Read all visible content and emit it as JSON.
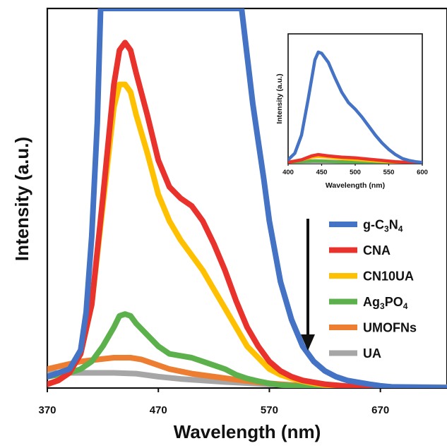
{
  "chart_data": [
    {
      "type": "line",
      "title": "",
      "xlabel": "Wavelength (nm)",
      "ylabel": "Intensity (a.u.)",
      "xlim": [
        370,
        730
      ],
      "ylim": [
        0,
        100
      ],
      "xticks": [
        370,
        470,
        570,
        670
      ],
      "xtick_labels": [
        "370",
        "470",
        "570",
        "670"
      ],
      "grid": false,
      "legend_position": "right",
      "annotation": "down-arrow",
      "series": [
        {
          "name": "g-C3N4",
          "color": "#4472C4",
          "x": [
            370,
            390,
            400,
            405,
            410,
            415,
            418,
            545,
            555,
            560,
            565,
            570,
            580,
            590,
            600,
            610,
            620,
            630,
            640,
            650,
            660,
            670,
            680,
            700,
            730
          ],
          "y": [
            3,
            5,
            10,
            20,
            40,
            70,
            100,
            100,
            75,
            65,
            55,
            44,
            28,
            18,
            11,
            7,
            4.5,
            3,
            2,
            1.5,
            1,
            0.6,
            0.3,
            0.2,
            0.1
          ]
        },
        {
          "name": "CNA",
          "color": "#E8322B",
          "x": [
            370,
            380,
            390,
            400,
            410,
            420,
            430,
            435,
            440,
            445,
            450,
            460,
            470,
            480,
            490,
            500,
            505,
            510,
            520,
            530,
            540,
            550,
            560,
            570,
            580,
            590,
            600,
            610,
            620,
            640,
            660,
            680,
            700,
            730
          ],
          "y": [
            1,
            2,
            4,
            9,
            22,
            50,
            80,
            89,
            91,
            89,
            83,
            72,
            60,
            53,
            50,
            48,
            46,
            44,
            38,
            31,
            23,
            16,
            11,
            7,
            4.5,
            3,
            2,
            1.5,
            1,
            0.5,
            0.3,
            0.2,
            0.1,
            0.1
          ]
        },
        {
          "name": "CN10UA",
          "color": "#FFC000",
          "x": [
            370,
            380,
            390,
            400,
            410,
            420,
            430,
            435,
            440,
            445,
            450,
            460,
            470,
            480,
            490,
            500,
            510,
            520,
            530,
            540,
            550,
            560,
            570,
            580,
            590,
            600,
            610,
            620,
            640,
            660,
            680,
            700,
            730
          ],
          "y": [
            1,
            2,
            4,
            9,
            22,
            48,
            74,
            80,
            80,
            78,
            72,
            62,
            51,
            44,
            39,
            35,
            31,
            26,
            21,
            16,
            11,
            8,
            5,
            3.5,
            2.5,
            1.8,
            1.2,
            0.8,
            0.4,
            0.2,
            0.1,
            0.1,
            0.1
          ]
        },
        {
          "name": "Ag3PO4",
          "color": "#5DB14D",
          "x": [
            370,
            380,
            390,
            400,
            410,
            420,
            430,
            435,
            440,
            445,
            450,
            460,
            470,
            480,
            490,
            500,
            510,
            520,
            530,
            540,
            550,
            560,
            570,
            580,
            600,
            620,
            650,
            680,
            730
          ],
          "y": [
            3,
            3.5,
            4,
            5,
            7,
            11,
            16,
            19,
            19.5,
            19,
            17,
            14,
            11,
            9,
            8.5,
            8,
            7,
            6,
            5,
            3.5,
            2.5,
            1.8,
            1.2,
            0.8,
            0.4,
            0.2,
            0.1,
            0.1,
            0.1
          ]
        },
        {
          "name": "UMOFNs",
          "color": "#ED7D31",
          "x": [
            370,
            385,
            400,
            415,
            430,
            445,
            455,
            465,
            480,
            500,
            520,
            540,
            560,
            580,
            600,
            620,
            640,
            660,
            680,
            700,
            730
          ],
          "y": [
            5,
            6,
            7,
            7.5,
            8,
            8,
            7.5,
            6.5,
            5,
            3.8,
            3,
            2.2,
            1.5,
            1,
            0.6,
            0.4,
            0.3,
            0.2,
            0.1,
            0.1,
            0.1
          ]
        },
        {
          "name": "UA",
          "color": "#A6A6A6",
          "x": [
            370,
            390,
            410,
            430,
            450,
            470,
            490,
            510,
            530,
            550,
            570,
            590,
            610,
            630,
            650,
            680,
            730
          ],
          "y": [
            4,
            4,
            4,
            4,
            3.8,
            3,
            2.4,
            2,
            1.6,
            1.3,
            1,
            0.8,
            0.6,
            0.5,
            0.4,
            0.3,
            0.2
          ]
        }
      ],
      "legend": [
        {
          "label": "g-C",
          "sub1": "3",
          "mid": "N",
          "sub2": "4",
          "color": "#4472C4"
        },
        {
          "label": "CNA",
          "color": "#E8322B"
        },
        {
          "label": "CN10UA",
          "color": "#FFC000"
        },
        {
          "label": "Ag",
          "sub1": "3",
          "mid": "PO",
          "sub2": "4",
          "color": "#5DB14D"
        },
        {
          "label": "UMOFNs",
          "color": "#ED7D31"
        },
        {
          "label": "UA",
          "color": "#A6A6A6"
        }
      ]
    },
    {
      "type": "line",
      "title": "",
      "xlabel": "Wavelength (nm)",
      "ylabel": "Intensity (a.u.)",
      "xlim": [
        400,
        600
      ],
      "ylim": [
        0,
        100
      ],
      "xticks": [
        400,
        450,
        500,
        550,
        600
      ],
      "xtick_labels": [
        "400",
        "450",
        "500",
        "550",
        "600"
      ],
      "series": [
        {
          "name": "g-C3N4",
          "color": "#4472C4",
          "x": [
            400,
            410,
            420,
            430,
            440,
            445,
            450,
            460,
            470,
            480,
            490,
            500,
            510,
            520,
            530,
            540,
            550,
            560,
            570,
            580,
            590,
            600
          ],
          "y": [
            3,
            8,
            22,
            50,
            80,
            86,
            85,
            78,
            66,
            55,
            47,
            42,
            36,
            29,
            22,
            16,
            11,
            7,
            4,
            2.5,
            1.5,
            1
          ]
        },
        {
          "name": "CNA",
          "color": "#E8322B",
          "x": [
            400,
            420,
            435,
            445,
            460,
            480,
            500,
            520,
            540,
            560,
            580,
            600
          ],
          "y": [
            1,
            3,
            6,
            7,
            6,
            5,
            4.5,
            3.5,
            2.5,
            1.5,
            1,
            0.5
          ]
        },
        {
          "name": "CN10UA",
          "color": "#FFC000",
          "x": [
            400,
            420,
            435,
            445,
            460,
            480,
            500,
            520,
            540,
            560,
            580,
            600
          ],
          "y": [
            1,
            3,
            5,
            5.5,
            5,
            4,
            3.2,
            2.5,
            1.8,
            1.2,
            0.8,
            0.5
          ]
        },
        {
          "name": "Ag3PO4",
          "color": "#5DB14D",
          "x": [
            400,
            420,
            440,
            460,
            480,
            500,
            530,
            560,
            600
          ],
          "y": [
            1,
            1.5,
            2.2,
            1.8,
            1.3,
            1,
            0.6,
            0.4,
            0.2
          ]
        },
        {
          "name": "UMOFNs",
          "color": "#ED7D31",
          "x": [
            400,
            430,
            450,
            480,
            520,
            560,
            600
          ],
          "y": [
            1.5,
            2.2,
            2.2,
            1.5,
            1,
            0.5,
            0.3
          ]
        },
        {
          "name": "UA",
          "color": "#A6A6A6",
          "x": [
            400,
            450,
            500,
            550,
            600
          ],
          "y": [
            1,
            1,
            0.7,
            0.5,
            0.3
          ]
        }
      ]
    }
  ]
}
